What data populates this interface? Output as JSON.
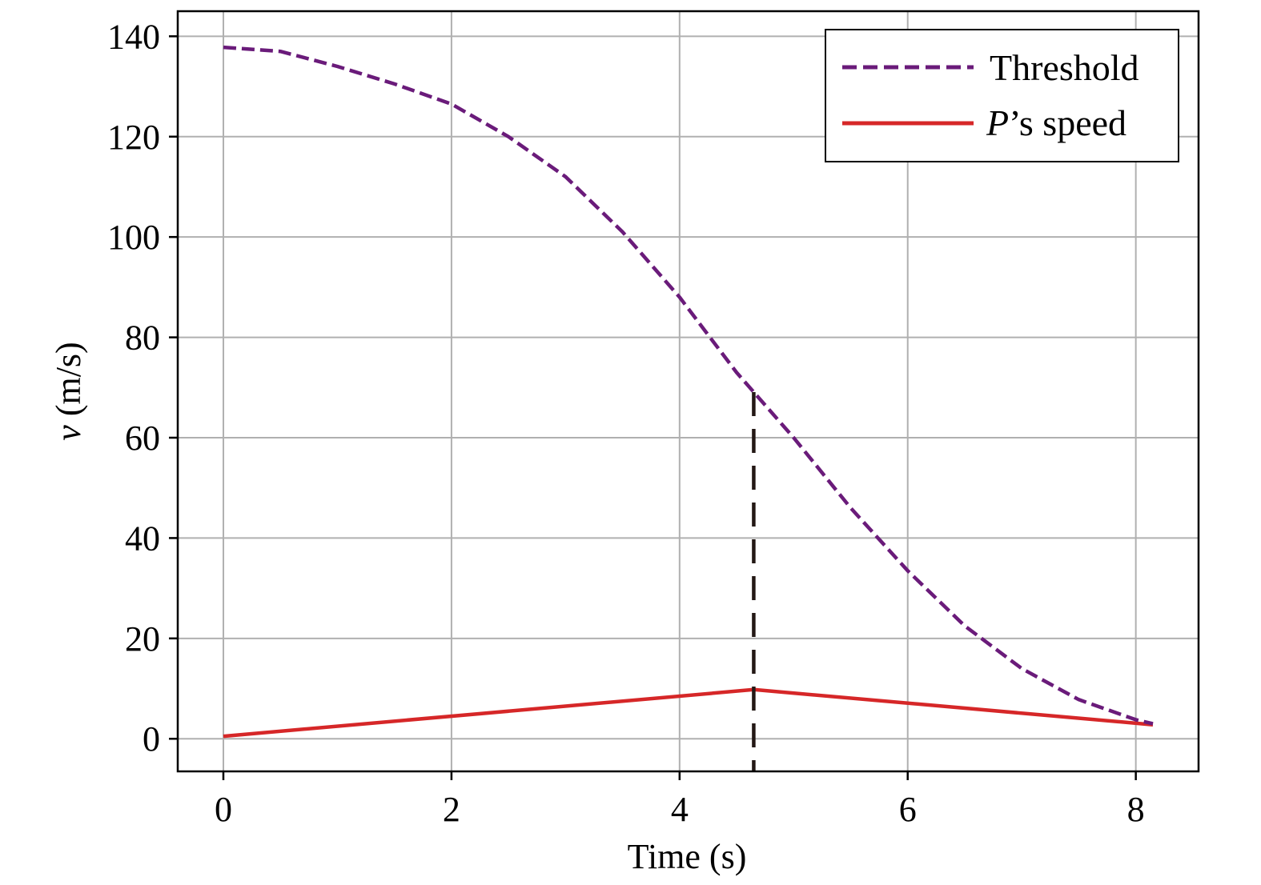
{
  "chart_data": {
    "type": "line",
    "xlabel": "Time (s)",
    "ylabel_var": "v",
    "ylabel_unit": " (m/s)",
    "xlim": [
      -0.4,
      8.55
    ],
    "ylim": [
      -6.5,
      145
    ],
    "xticks": [
      0,
      2,
      4,
      6,
      8
    ],
    "yticks": [
      0,
      20,
      40,
      60,
      80,
      100,
      120,
      140
    ],
    "grid": true,
    "legend_position": "top-right",
    "marker_x": 4.65,
    "series": [
      {
        "name_italic": "P",
        "name_rest": "’s speed",
        "color": "#d62728",
        "style": "solid",
        "x": [
          0,
          4.65,
          8.15
        ],
        "y": [
          0.5,
          9.8,
          2.8
        ]
      },
      {
        "name": "Threshold",
        "color": "#6a1b7a",
        "style": "dashed",
        "x": [
          0,
          0.5,
          1,
          1.5,
          2,
          2.5,
          3,
          3.5,
          4,
          4.5,
          5,
          5.5,
          6,
          6.5,
          7,
          7.5,
          8,
          8.15
        ],
        "y": [
          137.8,
          137.0,
          134.0,
          130.5,
          126.5,
          120.0,
          112.0,
          101.0,
          88.0,
          73.0,
          60.0,
          46.0,
          33.5,
          22.5,
          14.0,
          7.8,
          3.8,
          3.0
        ]
      }
    ]
  }
}
